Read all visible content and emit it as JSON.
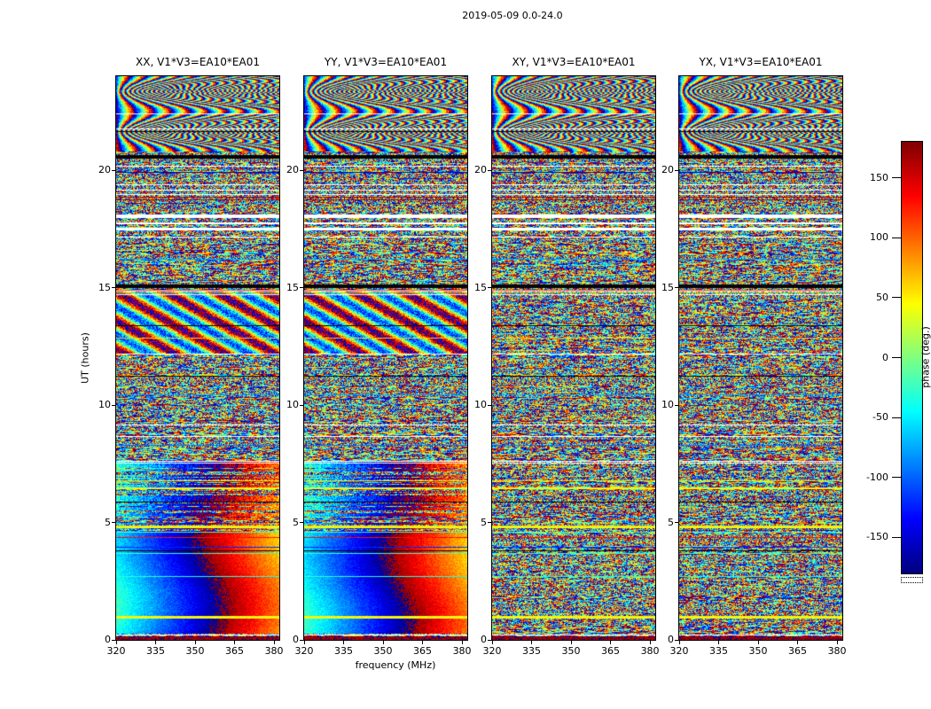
{
  "figure": {
    "title": "2019-05-09 0.0-24.0"
  },
  "panels": [
    {
      "id": "xx",
      "title": "XX, V1*V3=EA10*EA01"
    },
    {
      "id": "yy",
      "title": "YY, V1*V3=EA10*EA01"
    },
    {
      "id": "xy",
      "title": "XY, V1*V3=EA10*EA01"
    },
    {
      "id": "yx",
      "title": "YX, V1*V3=EA10*EA01"
    }
  ],
  "axes": {
    "xlabel": "frequency (MHz)",
    "ylabel": "UT (hours)",
    "x_ticks": [
      320,
      335,
      350,
      365,
      380
    ],
    "y_ticks": [
      0,
      5,
      10,
      15,
      20
    ],
    "x_range": [
      320,
      382
    ],
    "y_range": [
      0,
      24
    ]
  },
  "colorbar": {
    "label": "phase (deg.)",
    "ticks": [
      150,
      100,
      50,
      0,
      -50,
      -100,
      -150
    ],
    "range": [
      -180,
      180
    ],
    "colormap": "jet"
  },
  "chart_data": {
    "type": "heatmap",
    "title": "2019-05-09 0.0-24.0",
    "subplots": [
      "XX, V1*V3=EA10*EA01",
      "YY, V1*V3=EA10*EA01",
      "XY, V1*V3=EA10*EA01",
      "YX, V1*V3=EA10*EA01"
    ],
    "xlabel": "frequency (MHz)",
    "ylabel": "UT (hours)",
    "xlim": [
      320,
      382
    ],
    "ylim": [
      0,
      24
    ],
    "value_label": "phase (deg.)",
    "value_range": [
      -180,
      180
    ],
    "colormap": "jet",
    "legend_position": "right colorbar",
    "grid": false,
    "features": [
      {
        "panels": [
          "XX",
          "YY"
        ],
        "hours": [
          0.3,
          7.6
        ],
        "description": "smooth phase gradient vs frequency: cyan/blue at 320-350 MHz wrapping through dark blue near 355 MHz to red/orange at 357-370 MHz, yellow-green toward 380 MHz"
      },
      {
        "panels": [
          "XX",
          "YY"
        ],
        "hours": [
          12.2,
          14.95
        ],
        "description": "partially coherent wavy red/blue phase structure"
      },
      {
        "panels": [
          "all"
        ],
        "hours": [
          20.8,
          24.0
        ],
        "description": "fringe / moire interference arc patterns"
      },
      {
        "panels": [
          "all"
        ],
        "hours": [
          17.4,
          18.1
        ],
        "description": "white horizontal gaps (flagged / missing data)"
      },
      {
        "panels": [
          "all"
        ],
        "hours": [
          15.0,
          15.15
        ],
        "description": "solid black horizontal band"
      },
      {
        "panels": [
          "all"
        ],
        "hours": [
          20.5,
          20.66
        ],
        "description": "solid black horizontal band"
      },
      {
        "panels": [
          "all"
        ],
        "description": "remaining pixels are pseudo-random wrapped phase noise spanning -180 to +180 deg, with scattered thin white, black and solid-color (green/cyan) rows shared across the four polarization panels"
      }
    ]
  }
}
